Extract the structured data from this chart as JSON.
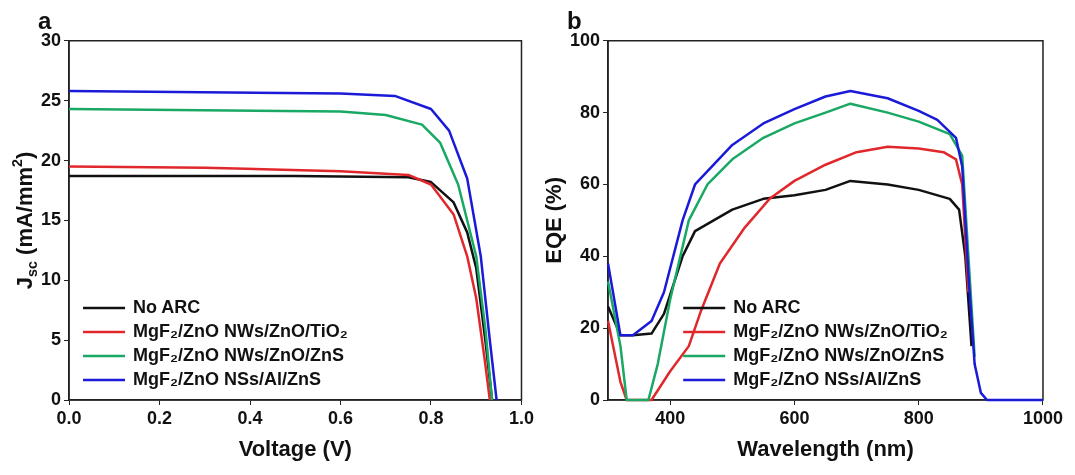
{
  "chart_data": [
    {
      "type": "line",
      "title": "a",
      "xlabel": "Voltage (V)",
      "ylabel": "J$_{sc}$ (mA/mm$^{2}$)",
      "xlim": [
        0,
        1
      ],
      "ylim": [
        0,
        30
      ],
      "xticks": [
        {
          "value": 0,
          "label": "0.0"
        },
        0.2,
        0.4,
        0.6,
        0.8,
        {
          "value": 1,
          "label": "1.0"
        }
      ],
      "yticks": [
        0,
        5,
        10,
        15,
        20,
        25,
        30
      ],
      "grid": false,
      "legend": "bottom left",
      "marker": "none",
      "line_style": "solid",
      "series": [
        {
          "name": "No ARC",
          "color": "#111111",
          "x": [
            0,
            0.5,
            0.75,
            0.8,
            0.85,
            0.88,
            0.9,
            0.92,
            0.935
          ],
          "values": [
            18.7,
            18.7,
            18.6,
            18.2,
            16.5,
            14,
            11,
            5,
            0
          ]
        },
        {
          "name": "MgF₂/ZnO NWs/ZnO/TiO₂",
          "color": "#e0282c",
          "x": [
            0,
            0.3,
            0.6,
            0.75,
            0.8,
            0.85,
            0.88,
            0.9,
            0.92,
            0.93
          ],
          "values": [
            19.5,
            19.4,
            19.1,
            18.8,
            18,
            15.5,
            12,
            8.5,
            3,
            0
          ]
        },
        {
          "name": "MgF₂/ZnO NWs/ZnO/ZnS",
          "color": "#1aa865",
          "x": [
            0,
            0.6,
            0.7,
            0.78,
            0.82,
            0.86,
            0.9,
            0.92,
            0.935
          ],
          "values": [
            24.3,
            24.1,
            23.8,
            23,
            21.5,
            18,
            12,
            6,
            0
          ]
        },
        {
          "name": "MgF₂/ZnO NSs/Al/ZnS",
          "color": "#1a1ad8",
          "x": [
            0,
            0.6,
            0.72,
            0.8,
            0.84,
            0.88,
            0.91,
            0.93,
            0.945
          ],
          "values": [
            25.8,
            25.6,
            25.4,
            24.3,
            22.5,
            18.5,
            12,
            5,
            0
          ]
        }
      ]
    },
    {
      "type": "line",
      "title": "b",
      "xlabel": "Wavelength (nm)",
      "ylabel": "EQE (%)",
      "xlim": [
        300,
        1000
      ],
      "ylim": [
        0,
        100
      ],
      "xticks": [
        400,
        600,
        800,
        1000
      ],
      "yticks": [
        0,
        20,
        40,
        60,
        80,
        100
      ],
      "grid": false,
      "legend": "bottom",
      "marker": "none",
      "line_style": "solid",
      "series": [
        {
          "name": "No ARC",
          "color": "#111111",
          "x": [
            300,
            320,
            340,
            370,
            390,
            420,
            440,
            500,
            550,
            600,
            650,
            690,
            750,
            800,
            850,
            865,
            875,
            885
          ],
          "values": [
            26,
            18,
            18,
            18.5,
            24,
            40,
            47,
            53,
            56,
            57,
            58.5,
            61,
            60,
            58.5,
            56,
            53,
            40,
            15
          ]
        },
        {
          "name": "MgF₂/ZnO NWs/ZnO/TiO₂",
          "color": "#e0282c",
          "x": [
            300,
            320,
            330,
            370,
            400,
            430,
            450,
            480,
            520,
            560,
            600,
            650,
            700,
            750,
            800,
            840,
            860,
            870,
            880
          ],
          "values": [
            22,
            5,
            0,
            0,
            8,
            15,
            25,
            38,
            48,
            56,
            61,
            65.5,
            69,
            70.5,
            70,
            69,
            67,
            60,
            30
          ]
        },
        {
          "name": "MgF₂/ZnO NWs/ZnO/ZnS",
          "color": "#1aa865",
          "x": [
            300,
            320,
            330,
            365,
            380,
            400,
            430,
            460,
            500,
            550,
            600,
            650,
            690,
            750,
            800,
            850,
            870,
            880,
            890
          ],
          "values": [
            33,
            15,
            0,
            0,
            10,
            28,
            50,
            60,
            67,
            73,
            77,
            80,
            82.5,
            80,
            77.5,
            74,
            68,
            40,
            12
          ]
        },
        {
          "name": "MgF₂/ZnO NSs/Al/ZnS",
          "color": "#1a1ad8",
          "x": [
            300,
            320,
            340,
            370,
            390,
            420,
            440,
            500,
            550,
            600,
            650,
            690,
            750,
            800,
            830,
            860,
            870,
            880,
            890,
            900,
            910,
            1000
          ],
          "values": [
            38,
            18,
            18,
            22,
            30,
            50,
            60,
            71,
            77,
            81,
            84.5,
            86,
            84,
            80.5,
            78,
            73,
            65,
            35,
            10,
            2,
            0,
            0
          ]
        }
      ]
    }
  ]
}
